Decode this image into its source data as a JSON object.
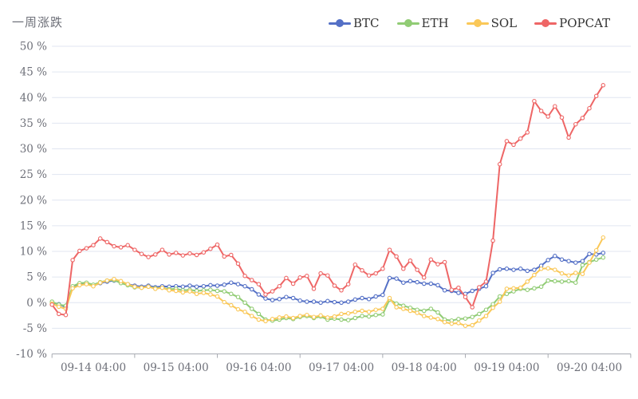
{
  "title": "一周涨跌",
  "colors": {
    "grid_line": "#e0e6f1",
    "axis_line": "#a8abb2",
    "axis_label": "#6e7079",
    "legend_text": "#333333",
    "background": "#ffffff",
    "marker_fill": "#ffffff"
  },
  "chart_data": {
    "type": "line",
    "title": "一周涨跌",
    "ylabel": "",
    "xlabel": "",
    "ylim": [
      -10,
      50
    ],
    "grid": true,
    "legend_position": "top-right",
    "y_ticks": [
      {
        "value": 50,
        "label": "50 %"
      },
      {
        "value": 45,
        "label": "45 %"
      },
      {
        "value": 40,
        "label": "40 %"
      },
      {
        "value": 35,
        "label": "35 %"
      },
      {
        "value": 30,
        "label": "30 %"
      },
      {
        "value": 25,
        "label": "25 %"
      },
      {
        "value": 20,
        "label": "20 %"
      },
      {
        "value": 15,
        "label": "15 %"
      },
      {
        "value": 10,
        "label": "10 %"
      },
      {
        "value": 5,
        "label": "5 %"
      },
      {
        "value": 0,
        "label": "0 %"
      },
      {
        "value": -5,
        "label": "-5 %"
      },
      {
        "value": -10,
        "label": "-10 %"
      }
    ],
    "x_ticks": [
      {
        "index": 6,
        "label": "09-14 04:00"
      },
      {
        "index": 18,
        "label": "09-15 04:00"
      },
      {
        "index": 30,
        "label": "09-16 04:00"
      },
      {
        "index": 42,
        "label": "09-17 04:00"
      },
      {
        "index": 54,
        "label": "09-18 04:00"
      },
      {
        "index": 66,
        "label": "09-19 04:00"
      },
      {
        "index": 78,
        "label": "09-20 04:00"
      }
    ],
    "x_boundary_tick_indices": [
      0,
      12,
      24,
      36,
      48,
      60,
      72,
      84
    ],
    "series": [
      {
        "name": "BTC",
        "color": "#5470c6",
        "values": [
          0.0,
          -0.3,
          -0.9,
          3.0,
          3.6,
          3.7,
          3.3,
          3.8,
          4.1,
          4.3,
          4.0,
          3.6,
          3.3,
          3.1,
          3.3,
          3.0,
          3.2,
          3.1,
          3.2,
          3.1,
          3.3,
          3.1,
          3.2,
          3.4,
          3.3,
          3.5,
          3.9,
          3.6,
          3.2,
          2.6,
          1.6,
          0.8,
          0.5,
          0.7,
          1.1,
          0.9,
          0.4,
          0.2,
          0.2,
          0.0,
          0.3,
          0.1,
          0.0,
          0.2,
          0.6,
          0.9,
          0.7,
          1.2,
          1.5,
          4.8,
          4.7,
          3.9,
          4.2,
          4.0,
          3.7,
          3.7,
          3.4,
          2.4,
          2.3,
          1.9,
          1.7,
          2.3,
          2.7,
          3.2,
          5.8,
          6.5,
          6.6,
          6.4,
          6.6,
          6.2,
          6.4,
          7.2,
          8.3,
          9.1,
          8.4,
          8.1,
          7.8,
          8.1,
          9.5,
          9.4,
          9.7
        ]
      },
      {
        "name": "ETH",
        "color": "#91cc75",
        "values": [
          0.2,
          -0.4,
          -0.6,
          3.2,
          3.8,
          3.9,
          3.5,
          4.0,
          4.3,
          4.4,
          3.8,
          3.4,
          3.0,
          2.9,
          3.1,
          2.8,
          2.9,
          2.6,
          2.7,
          2.4,
          2.5,
          2.3,
          2.4,
          2.5,
          2.3,
          2.2,
          1.7,
          1.1,
          0.0,
          -1.2,
          -2.2,
          -3.3,
          -3.5,
          -3.3,
          -3.0,
          -3.2,
          -2.8,
          -2.6,
          -3.0,
          -2.7,
          -3.3,
          -3.1,
          -3.3,
          -3.4,
          -3.0,
          -2.6,
          -2.7,
          -2.4,
          -2.3,
          0.6,
          -0.2,
          -0.6,
          -1.0,
          -1.4,
          -1.6,
          -1.2,
          -1.9,
          -3.3,
          -3.5,
          -3.2,
          -3.1,
          -2.8,
          -2.2,
          -1.4,
          -0.3,
          1.2,
          1.7,
          2.2,
          2.7,
          2.5,
          2.8,
          3.1,
          4.3,
          4.2,
          4.1,
          4.2,
          3.9,
          7.3,
          7.9,
          8.4,
          8.8
        ]
      },
      {
        "name": "SOL",
        "color": "#fac858",
        "values": [
          -0.2,
          -0.8,
          -1.2,
          2.8,
          3.4,
          3.6,
          3.2,
          3.9,
          4.3,
          4.6,
          4.2,
          3.6,
          3.1,
          2.9,
          3.1,
          2.7,
          2.9,
          2.4,
          2.3,
          2.0,
          2.2,
          1.7,
          1.9,
          1.6,
          1.2,
          0.1,
          -0.5,
          -1.3,
          -1.8,
          -2.6,
          -3.3,
          -3.6,
          -3.2,
          -2.9,
          -2.7,
          -3.0,
          -2.6,
          -2.4,
          -2.8,
          -2.5,
          -2.9,
          -2.7,
          -2.2,
          -2.1,
          -1.8,
          -1.6,
          -1.8,
          -1.4,
          -1.2,
          0.9,
          -0.9,
          -1.2,
          -1.6,
          -2.0,
          -2.6,
          -2.9,
          -3.2,
          -3.8,
          -4.1,
          -4.0,
          -4.5,
          -4.4,
          -3.5,
          -2.6,
          -1.0,
          0.2,
          2.7,
          2.8,
          2.9,
          4.1,
          5.4,
          6.6,
          6.7,
          6.4,
          5.7,
          5.3,
          5.8,
          5.6,
          7.8,
          10.2,
          12.7
        ]
      },
      {
        "name": "POPCAT",
        "color": "#ee6666",
        "values": [
          -0.4,
          -2.2,
          -2.4,
          8.3,
          10.1,
          10.6,
          11.2,
          12.5,
          11.8,
          11.0,
          10.8,
          11.2,
          10.3,
          9.5,
          8.9,
          9.4,
          10.3,
          9.4,
          9.7,
          9.2,
          9.6,
          9.3,
          9.8,
          10.5,
          11.3,
          9.0,
          9.3,
          7.6,
          5.2,
          4.4,
          3.6,
          1.6,
          2.2,
          3.2,
          4.8,
          3.7,
          4.9,
          5.2,
          2.7,
          5.7,
          5.3,
          3.3,
          2.4,
          3.6,
          7.4,
          6.3,
          5.3,
          5.7,
          6.6,
          10.3,
          9.0,
          6.6,
          8.2,
          6.4,
          4.9,
          8.4,
          7.5,
          7.9,
          2.5,
          2.9,
          1.1,
          -0.9,
          3.0,
          4.1,
          12.1,
          27.0,
          31.5,
          30.8,
          32.0,
          33.2,
          39.3,
          37.4,
          36.3,
          38.3,
          36.1,
          32.2,
          34.8,
          36.0,
          37.9,
          40.3,
          42.4
        ]
      }
    ]
  }
}
